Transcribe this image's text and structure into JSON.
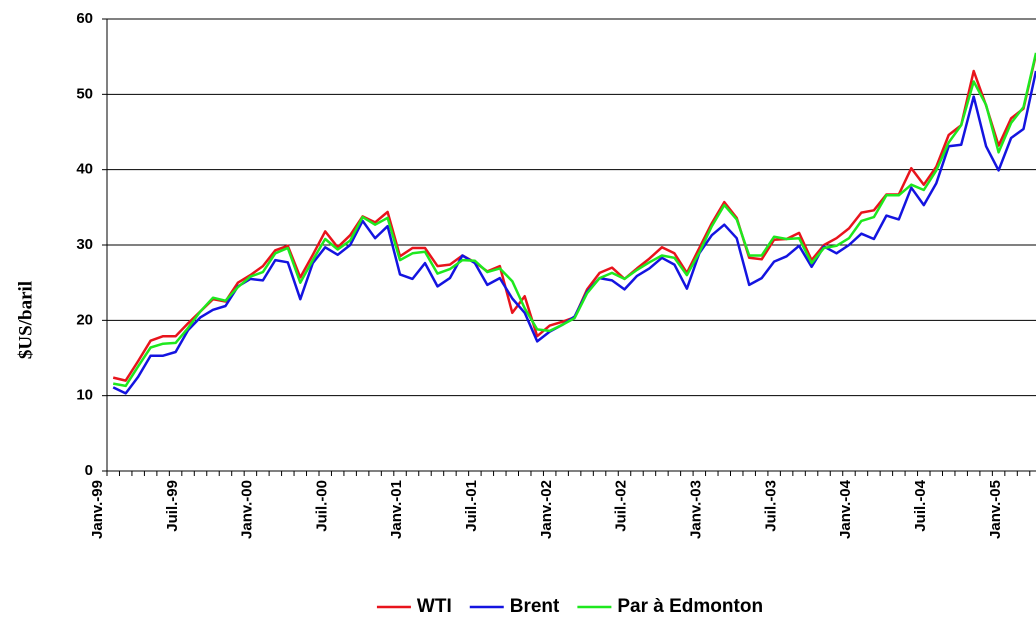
{
  "chart_data": {
    "type": "line",
    "ylabel": "$US/baril",
    "categories": [
      "Janv.-99",
      null,
      null,
      null,
      null,
      null,
      "Juil.-99",
      null,
      null,
      null,
      null,
      null,
      "Janv.-00",
      null,
      null,
      null,
      null,
      null,
      "Juil.-00",
      null,
      null,
      null,
      null,
      null,
      "Janv.-01",
      null,
      null,
      null,
      null,
      null,
      "Juil.-01",
      null,
      null,
      null,
      null,
      null,
      "Janv.-02",
      null,
      null,
      null,
      null,
      null,
      "Juil.-02",
      null,
      null,
      null,
      null,
      null,
      "Janv.-03",
      null,
      null,
      null,
      null,
      null,
      "Juil.-03",
      null,
      null,
      null,
      null,
      null,
      "Janv.-04",
      null,
      null,
      null,
      null,
      null,
      "Juil.-04",
      null,
      null,
      null,
      null,
      null,
      "Janv.-05",
      null,
      null
    ],
    "series": [
      {
        "name": "WTI",
        "color": "#e8141c",
        "values": [
          12.4,
          12.0,
          14.6,
          17.3,
          17.9,
          17.9,
          19.6,
          21.2,
          22.8,
          22.5,
          25.0,
          26.0,
          27.2,
          29.3,
          29.9,
          25.7,
          28.7,
          31.8,
          29.7,
          31.3,
          33.8,
          33.0,
          34.4,
          28.5,
          29.6,
          29.6,
          27.2,
          27.4,
          28.6,
          27.7,
          26.5,
          27.2,
          21.0,
          23.2,
          17.9,
          19.3,
          19.8,
          20.4,
          24.1,
          26.3,
          27.0,
          25.5,
          26.9,
          28.2,
          29.7,
          28.9,
          26.3,
          29.6,
          32.9,
          35.7,
          33.6,
          28.3,
          28.1,
          30.7,
          30.8,
          31.6,
          28.0,
          30.0,
          30.9,
          32.2,
          34.3,
          34.6,
          36.7,
          36.7,
          40.2,
          38.0,
          40.4,
          44.6,
          45.9,
          53.1,
          48.5,
          43.2,
          46.8,
          48.1,
          55.3
        ]
      },
      {
        "name": "Brent",
        "color": "#1414e0",
        "values": [
          11.1,
          10.3,
          12.5,
          15.3,
          15.3,
          15.8,
          18.7,
          20.4,
          21.4,
          21.9,
          24.5,
          25.5,
          25.3,
          28.0,
          27.7,
          22.8,
          27.6,
          29.7,
          28.7,
          30.0,
          33.2,
          30.9,
          32.5,
          26.1,
          25.5,
          27.6,
          24.5,
          25.6,
          28.6,
          27.6,
          24.7,
          25.6,
          22.9,
          21.0,
          17.2,
          18.5,
          19.4,
          20.5,
          23.8,
          25.6,
          25.3,
          24.1,
          25.9,
          26.9,
          28.3,
          27.4,
          24.2,
          28.9,
          31.3,
          32.7,
          30.9,
          24.7,
          25.6,
          27.8,
          28.5,
          29.9,
          27.1,
          29.8,
          28.9,
          30.0,
          31.5,
          30.8,
          33.9,
          33.4,
          37.6,
          35.3,
          38.2,
          43.1,
          43.3,
          49.7,
          43.1,
          39.9,
          44.2,
          45.4,
          53.1
        ]
      },
      {
        "name": "Par à Edmonton",
        "color": "#1ee81e",
        "values": [
          11.6,
          11.3,
          13.9,
          16.4,
          16.9,
          17.0,
          19.0,
          21.2,
          23.0,
          22.6,
          24.4,
          25.8,
          26.4,
          28.9,
          29.6,
          25.0,
          28.0,
          30.8,
          29.4,
          30.6,
          33.7,
          32.7,
          33.6,
          28.0,
          28.9,
          29.1,
          26.2,
          26.8,
          28.0,
          27.9,
          26.4,
          26.9,
          25.2,
          21.6,
          18.8,
          18.6,
          19.4,
          20.3,
          23.6,
          25.6,
          26.3,
          25.5,
          26.7,
          27.7,
          28.6,
          28.3,
          26.0,
          29.0,
          32.5,
          35.3,
          33.4,
          28.6,
          28.6,
          31.1,
          30.8,
          30.9,
          27.6,
          29.6,
          29.9,
          30.9,
          33.2,
          33.7,
          36.6,
          36.6,
          38.0,
          37.3,
          39.9,
          43.6,
          45.9,
          51.7,
          48.6,
          42.3,
          46.2,
          48.3,
          55.5
        ]
      }
    ],
    "ylim": [
      0,
      60
    ],
    "yticks": [
      0,
      10,
      20,
      30,
      40,
      50,
      60
    ],
    "grid": true,
    "legend": "bottom"
  }
}
